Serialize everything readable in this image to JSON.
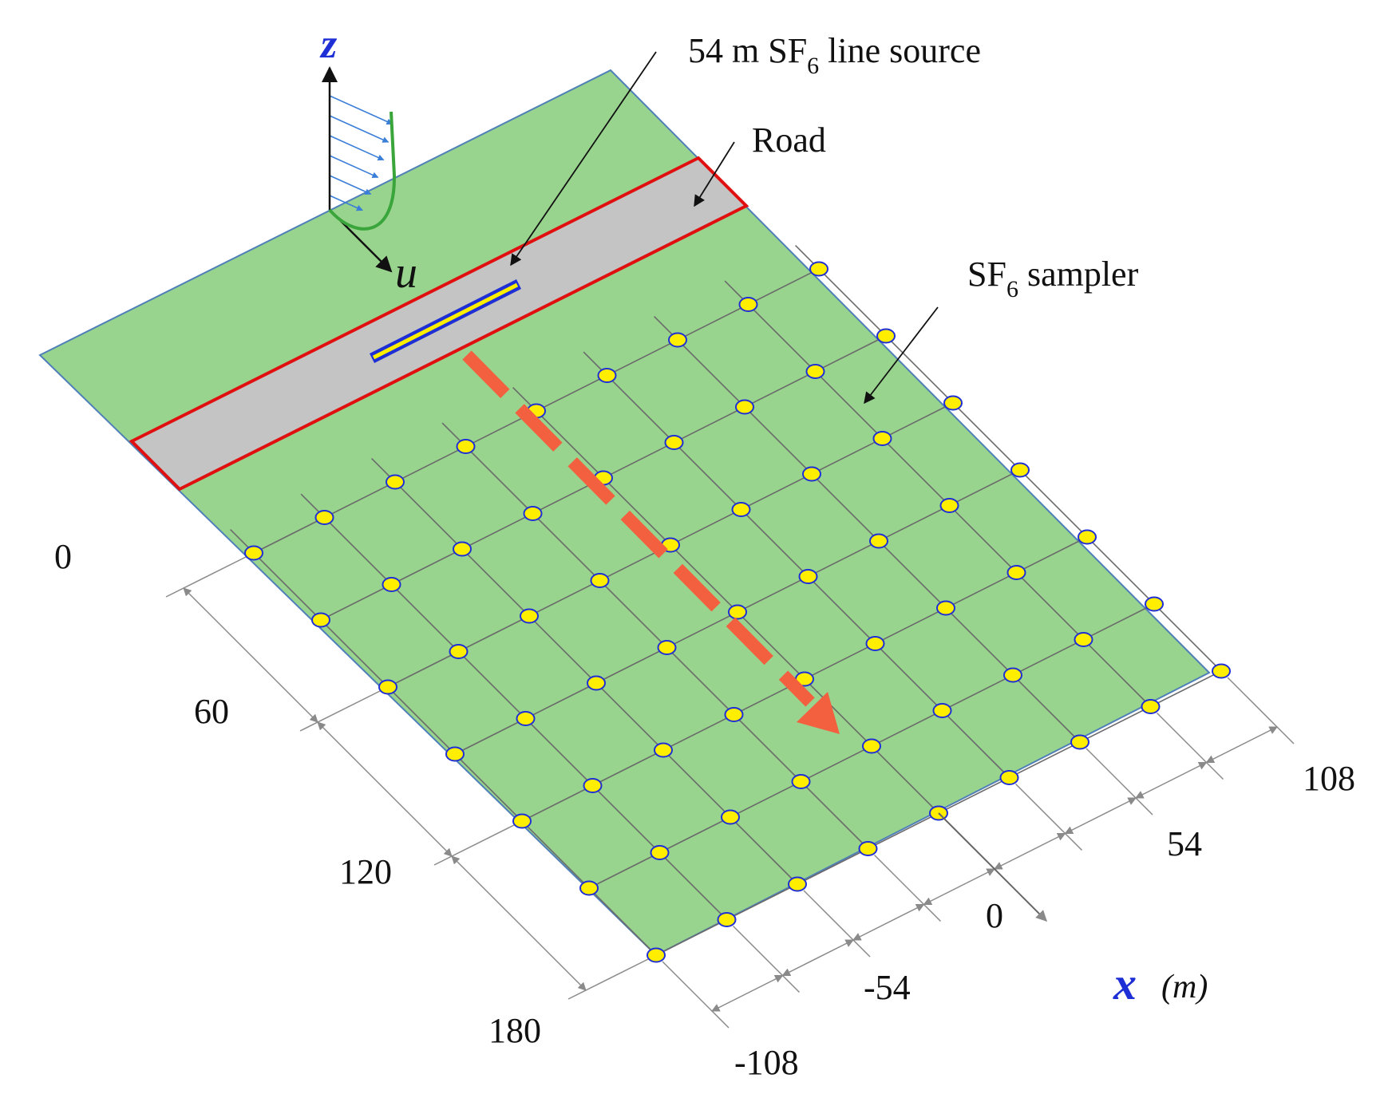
{
  "annotations": {
    "line_source_pre": "54 m SF",
    "line_source_sub": "6",
    "line_source_post": " line source",
    "road": "Road",
    "sampler_pre": "SF",
    "sampler_sub": "6",
    "sampler_post": " sampler"
  },
  "axes": {
    "z_label": "z",
    "u_label": "u",
    "x_label": "x",
    "x_unit": "(m)",
    "x_ticks": [
      "-108",
      "-54",
      "0",
      "54",
      "108"
    ],
    "y_ticks": [
      "0",
      "60",
      "120",
      "180"
    ]
  },
  "colors": {
    "ground": "#98d48e",
    "ground_edge": "#4f7fb8",
    "road": "#c4c4c4",
    "road_edge": "#e01010",
    "grid": "#6a6a6a",
    "sampler_fill": "#ffee00",
    "sampler_edge": "#1f2fd6",
    "source_fill": "#ffee00",
    "source_edge": "#1f2fd6",
    "wind_arrow": "#f26040",
    "profile_curve": "#3aa53a",
    "profile_hatch": "#3b7ed8",
    "dimension": "#8a8a8a"
  },
  "samplers": {
    "x_values": [
      -108,
      -81,
      -54,
      -27,
      0,
      27,
      54,
      81,
      108
    ],
    "rows_downwind_m": [
      0,
      30,
      60,
      90,
      120,
      150,
      180
    ],
    "count": 63
  }
}
